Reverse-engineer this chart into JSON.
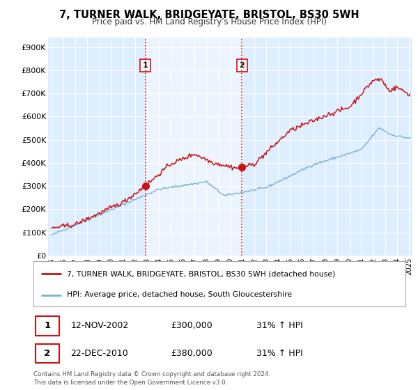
{
  "title": "7, TURNER WALK, BRIDGEYATE, BRISTOL, BS30 5WH",
  "subtitle": "Price paid vs. HM Land Registry's House Price Index (HPI)",
  "legend_line1": "7, TURNER WALK, BRIDGEYATE, BRISTOL, BS30 5WH (detached house)",
  "legend_line2": "HPI: Average price, detached house, South Gloucestershire",
  "footer": "Contains HM Land Registry data © Crown copyright and database right 2024.\nThis data is licensed under the Open Government Licence v3.0.",
  "sale1_date": "12-NOV-2002",
  "sale1_price": "£300,000",
  "sale1_hpi": "31% ↑ HPI",
  "sale1_x": 2002.87,
  "sale1_y": 300000,
  "sale2_date": "22-DEC-2010",
  "sale2_price": "£380,000",
  "sale2_hpi": "31% ↑ HPI",
  "sale2_x": 2010.98,
  "sale2_y": 380000,
  "red_color": "#cc1111",
  "blue_color": "#7ab0d4",
  "shade_color": "#d8eaf6",
  "background_color": "#ddeeff",
  "plot_bg": "#ffffff",
  "ylim": [
    0,
    940000
  ],
  "xlim_start": 1994.7,
  "xlim_end": 2025.3,
  "yticks": [
    0,
    100000,
    200000,
    300000,
    400000,
    500000,
    600000,
    700000,
    800000,
    900000
  ],
  "ytick_labels": [
    "£0",
    "£100K",
    "£200K",
    "£300K",
    "£400K",
    "£500K",
    "£600K",
    "£700K",
    "£800K",
    "£900K"
  ]
}
